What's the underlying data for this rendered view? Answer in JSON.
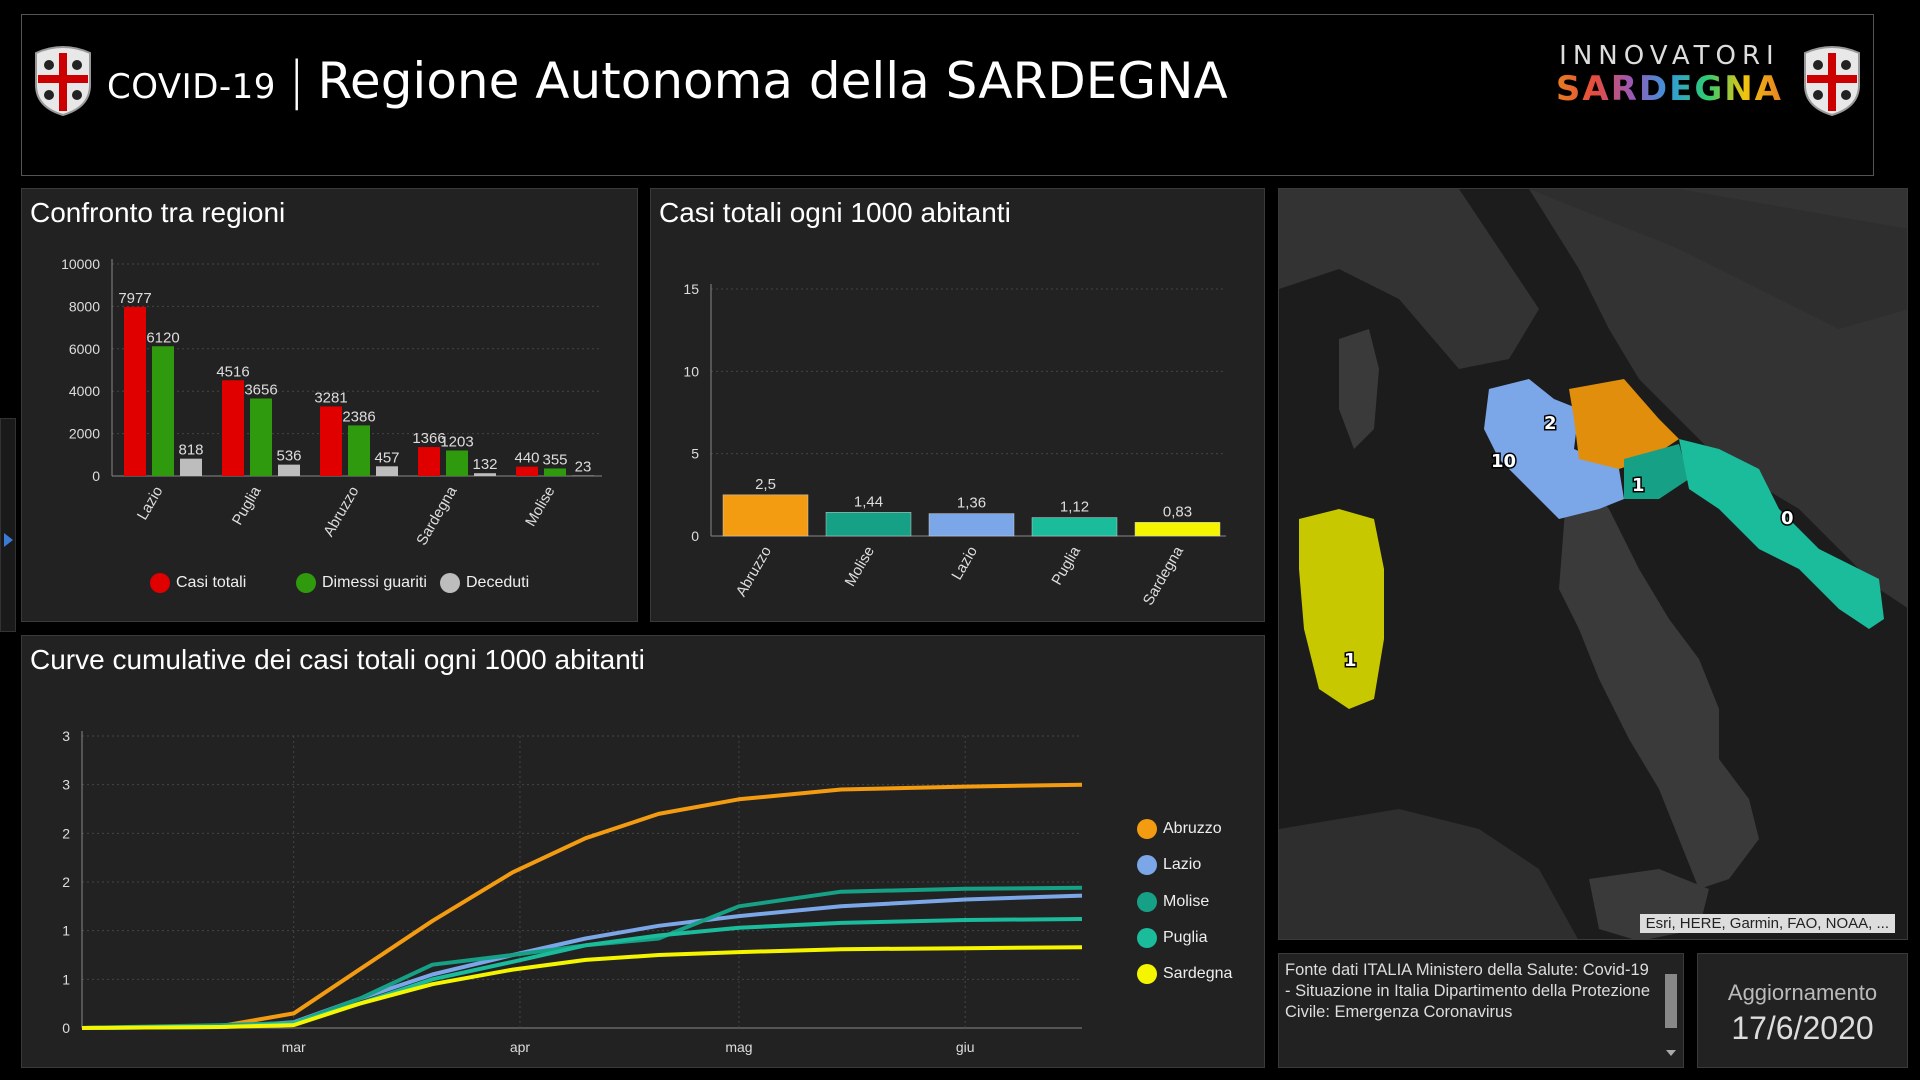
{
  "header": {
    "covid": "COVID-19",
    "separator": "|",
    "region_title": "Regione Autonoma della SARDEGNA",
    "brand_line1": "INNOVATORI",
    "brand_line2": "SARDEGNA"
  },
  "panel_regions": {
    "title": "Confronto tra regioni",
    "legend": [
      "Casi totali",
      "Dimessi guariti",
      "Deceduti"
    ]
  },
  "panel_per1000": {
    "title": "Casi totali ogni 1000 abitanti"
  },
  "panel_curves": {
    "title": "Curve cumulative dei casi totali ogni 1000 abitanti",
    "legend": [
      "Abruzzo",
      "Lazio",
      "Molise",
      "Puglia",
      "Sardegna"
    ]
  },
  "map": {
    "attribution": "Esri, HERE, Garmin, FAO, NOAA, ...",
    "labels": [
      "10",
      "2",
      "1",
      "0",
      "1"
    ]
  },
  "source": {
    "text": "Fonte dati ITALIA Ministero della Salute: Covid-19 - Situazione in Italia Dipartimento della Protezione Civile: Emergenza Coronavirus"
  },
  "update": {
    "label": "Aggiornamento",
    "date": "17/6/2020"
  },
  "colors": {
    "casi_totali": "#e00000",
    "dimessi": "#2f9a0e",
    "deceduti": "#bdbdbd",
    "abruzzo": "#f39c12",
    "lazio": "#7ba7e8",
    "molise": "#16a085",
    "puglia": "#1abc9c",
    "sardegna": "#f5f500"
  },
  "chart_data": [
    {
      "type": "bar",
      "categories": [
        "Lazio",
        "Puglia",
        "Abruzzo",
        "Sardegna",
        "Molise"
      ],
      "series": [
        {
          "name": "Casi totali",
          "values": [
            7977,
            4516,
            3281,
            1366,
            440
          ]
        },
        {
          "name": "Dimessi guariti",
          "values": [
            6120,
            3656,
            2386,
            1203,
            355
          ]
        },
        {
          "name": "Deceduti",
          "values": [
            818,
            536,
            457,
            132,
            23
          ]
        }
      ],
      "yticks": [
        "0",
        "2000",
        "4000",
        "6000",
        "8000",
        "10000"
      ],
      "ylim": [
        0,
        10000
      ],
      "legend": "bottom"
    },
    {
      "type": "bar",
      "categories": [
        "Abruzzo",
        "Molise",
        "Lazio",
        "Puglia",
        "Sardegna"
      ],
      "values": [
        2.5,
        1.44,
        1.36,
        1.12,
        0.83
      ],
      "value_labels": [
        "2,5",
        "1,44",
        "1,36",
        "1,12",
        "0,83"
      ],
      "yticks": [
        "0",
        "5",
        "10",
        "15"
      ],
      "ylim": [
        0,
        15
      ]
    },
    {
      "type": "line",
      "x_ticks": [
        "mar",
        "apr",
        "mag",
        "giu"
      ],
      "yticks": [
        "0",
        "1",
        "1",
        "2",
        "2",
        "3",
        "3"
      ],
      "ylim": [
        0,
        3
      ],
      "legend": "right",
      "series": [
        {
          "name": "Abruzzo",
          "x": [
            "2020-02-01",
            "2020-02-20",
            "2020-03-01",
            "2020-03-10",
            "2020-03-20",
            "2020-03-31",
            "2020-04-10",
            "2020-04-20",
            "2020-05-01",
            "2020-05-15",
            "2020-06-01",
            "2020-06-17"
          ],
          "values": [
            0,
            0.02,
            0.15,
            0.6,
            1.1,
            1.6,
            1.95,
            2.2,
            2.35,
            2.45,
            2.48,
            2.5
          ]
        },
        {
          "name": "Lazio",
          "x": [
            "2020-02-01",
            "2020-02-20",
            "2020-03-01",
            "2020-03-10",
            "2020-03-20",
            "2020-03-31",
            "2020-04-10",
            "2020-04-20",
            "2020-05-01",
            "2020-05-15",
            "2020-06-01",
            "2020-06-17"
          ],
          "values": [
            0,
            0.01,
            0.06,
            0.3,
            0.55,
            0.75,
            0.92,
            1.05,
            1.15,
            1.25,
            1.32,
            1.36
          ]
        },
        {
          "name": "Molise",
          "x": [
            "2020-02-01",
            "2020-02-20",
            "2020-03-01",
            "2020-03-10",
            "2020-03-20",
            "2020-03-31",
            "2020-04-10",
            "2020-04-20",
            "2020-05-01",
            "2020-05-15",
            "2020-06-01",
            "2020-06-17"
          ],
          "values": [
            0,
            0.03,
            0.05,
            0.3,
            0.65,
            0.75,
            0.85,
            0.92,
            1.25,
            1.4,
            1.43,
            1.44
          ]
        },
        {
          "name": "Puglia",
          "x": [
            "2020-02-01",
            "2020-02-20",
            "2020-03-01",
            "2020-03-10",
            "2020-03-20",
            "2020-03-31",
            "2020-04-10",
            "2020-04-20",
            "2020-05-01",
            "2020-05-15",
            "2020-06-01",
            "2020-06-17"
          ],
          "values": [
            0,
            0.01,
            0.05,
            0.25,
            0.5,
            0.68,
            0.85,
            0.95,
            1.03,
            1.08,
            1.11,
            1.12
          ]
        },
        {
          "name": "Sardegna",
          "x": [
            "2020-02-01",
            "2020-02-20",
            "2020-03-01",
            "2020-03-10",
            "2020-03-20",
            "2020-03-31",
            "2020-04-10",
            "2020-04-20",
            "2020-05-01",
            "2020-05-15",
            "2020-06-01",
            "2020-06-17"
          ],
          "values": [
            0,
            0.01,
            0.03,
            0.25,
            0.45,
            0.6,
            0.7,
            0.75,
            0.78,
            0.81,
            0.82,
            0.83
          ]
        }
      ]
    }
  ]
}
